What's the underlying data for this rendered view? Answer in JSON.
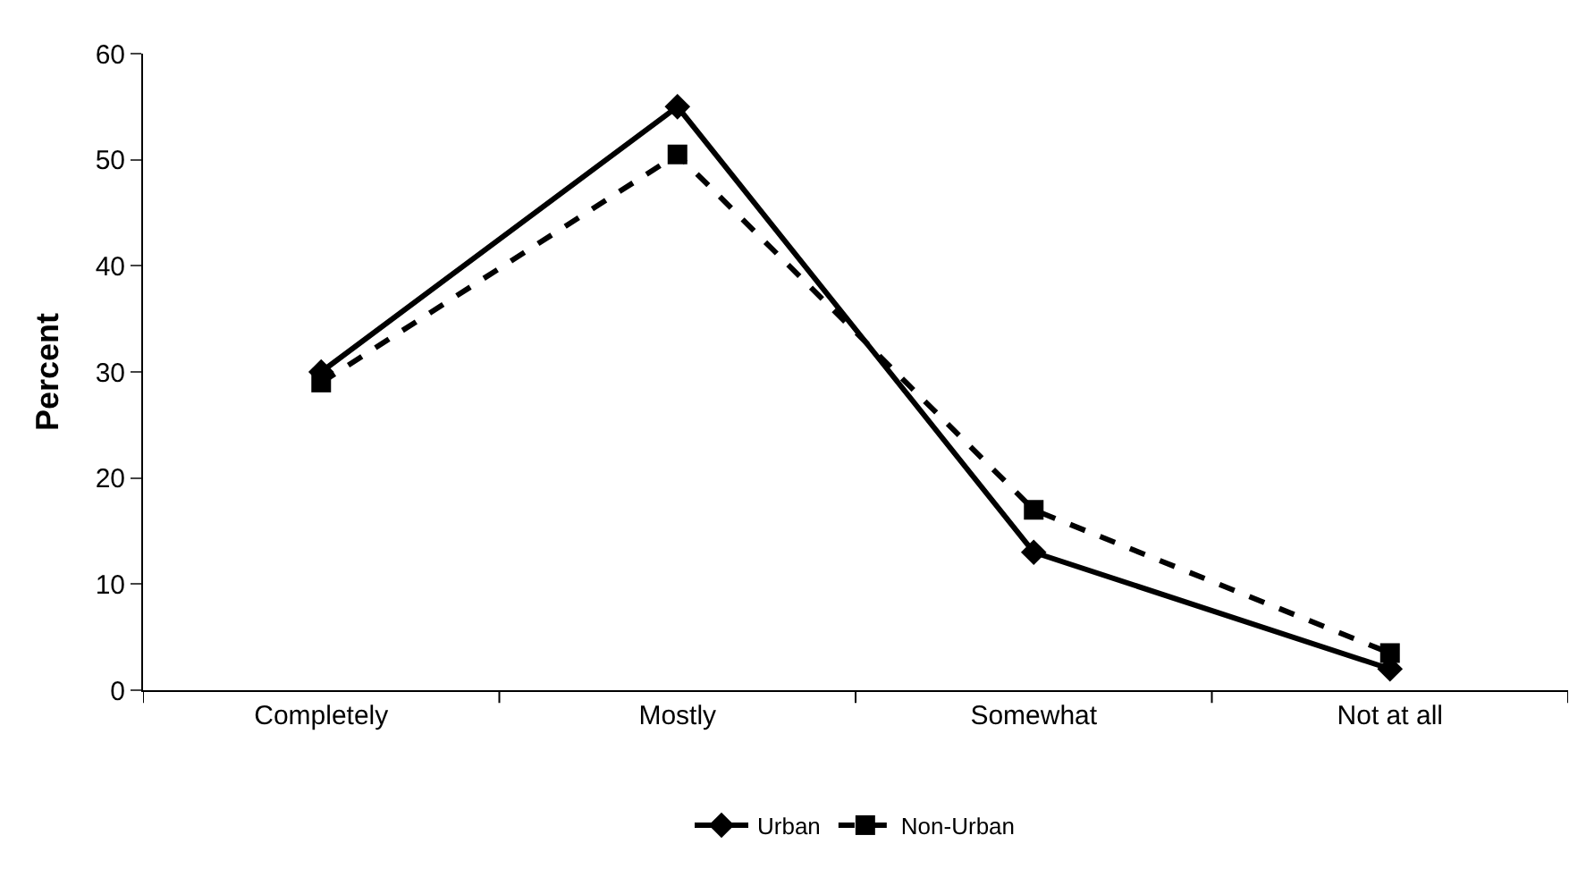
{
  "chart_data": {
    "type": "line",
    "ylabel": "Percent",
    "categories": [
      "Completely",
      "Mostly",
      "Somewhat",
      "Not at all"
    ],
    "series": [
      {
        "name": "Urban",
        "color": "#000000",
        "values": [
          30,
          55,
          13,
          2
        ],
        "marker": "diamond",
        "line_style": "solid"
      },
      {
        "name": "Non-Urban",
        "color": "#000000",
        "values": [
          29,
          50.5,
          17,
          3.5
        ],
        "marker": "square",
        "line_style": "dashed"
      }
    ],
    "ylim": [
      0,
      60
    ],
    "yticks": [
      0,
      10,
      20,
      30,
      40,
      50,
      60
    ],
    "legend": "bottom"
  }
}
